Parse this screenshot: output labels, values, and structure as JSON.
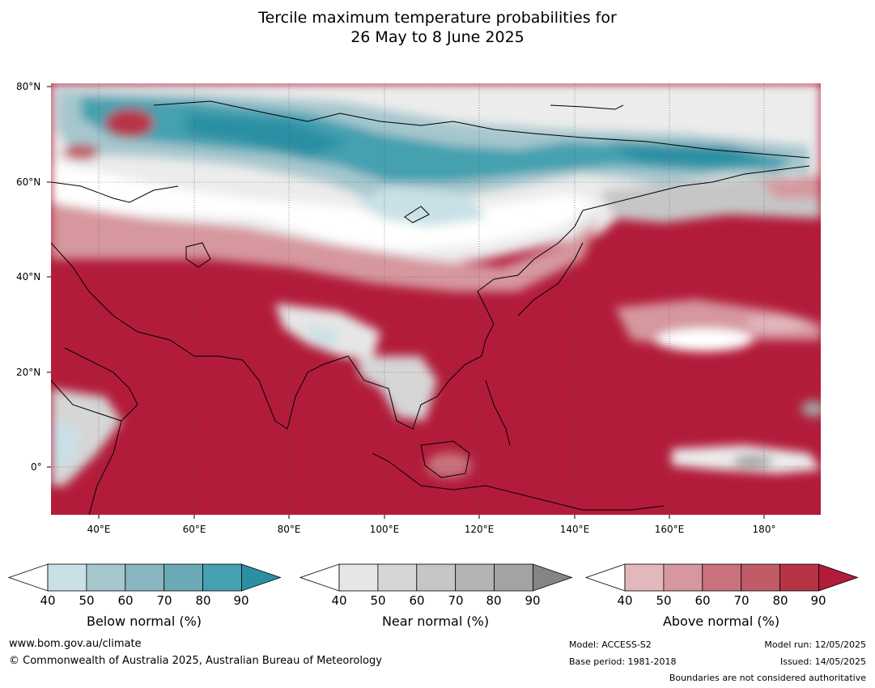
{
  "title_line1": "Tercile maximum temperature probabilities for",
  "title_line2": "26 May to 8 June 2025",
  "lat_labels": [
    "80°N",
    "60°N",
    "40°N",
    "20°N",
    "0°"
  ],
  "lon_labels": [
    "40°E",
    "60°E",
    "80°E",
    "100°E",
    "120°E",
    "140°E",
    "160°E",
    "180°"
  ],
  "colorbars": [
    {
      "name": "below",
      "title": "Below normal (%)",
      "ticks": [
        "40",
        "50",
        "60",
        "70",
        "80",
        "90"
      ],
      "colors": [
        "#ffffff",
        "#c9e1e6",
        "#a6c7ce",
        "#89b5c0",
        "#6aa9b5",
        "#45a0b0",
        "#2b8fa3"
      ]
    },
    {
      "name": "near",
      "title": "Near normal (%)",
      "ticks": [
        "40",
        "50",
        "60",
        "70",
        "80",
        "90"
      ],
      "colors": [
        "#ffffff",
        "#e6e6e6",
        "#d6d6d6",
        "#c6c6c6",
        "#b4b4b4",
        "#a3a3a3",
        "#858585"
      ]
    },
    {
      "name": "above",
      "title": "Above normal (%)",
      "ticks": [
        "40",
        "50",
        "60",
        "70",
        "80",
        "90"
      ],
      "colors": [
        "#ffffff",
        "#e2b8bd",
        "#d6979f",
        "#c9727d",
        "#c05b68",
        "#b73447",
        "#b21c3a"
      ]
    }
  ],
  "footer": {
    "url": "www.bom.gov.au/climate",
    "copyright": "© Commonwealth of Australia 2025, Australian Bureau of Meteorology",
    "model": "Model: ACCESS-S2",
    "base_period": "Base period: 1981-2018",
    "model_run": "Model run: 12/05/2025",
    "issued": "Issued: 14/05/2025",
    "disclaimer": "Boundaries are not considered authoritative"
  },
  "palette": {
    "above_main": "#b21c3a",
    "above_mid": "#c9727d",
    "above_light": "#e2b8bd",
    "below_main": "#2b8fa3",
    "below_mid": "#89b5c0",
    "below_light": "#c9e1e6",
    "near_light": "#e3e3e3",
    "near_mid": "#c4c4c4",
    "near_dark": "#a3a3a3"
  }
}
